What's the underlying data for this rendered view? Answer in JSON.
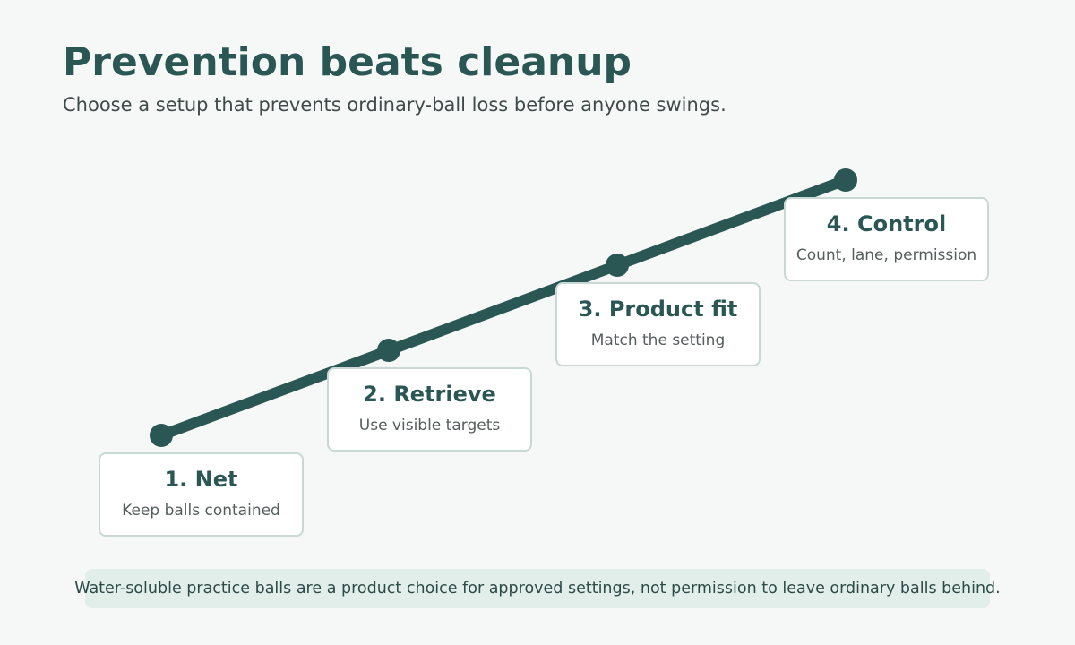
{
  "title": "Prevention beats cleanup",
  "subtitle": "Choose a setup that prevents ordinary-ball loss before anyone swings.",
  "steps": [
    {
      "title": "1. Net",
      "desc": "Keep balls contained"
    },
    {
      "title": "2. Retrieve",
      "desc": "Use visible targets"
    },
    {
      "title": "3. Product fit",
      "desc": "Match the setting"
    },
    {
      "title": "4. Control",
      "desc": "Count, lane, permission"
    }
  ],
  "note": "Water-soluble practice balls are a product choice for approved settings, not permission to leave ordinary balls behind.",
  "colors": {
    "accent": "#2a5654",
    "card_border": "#c9d8d5",
    "note_bg": "#e2eee9",
    "background": "#f6f8f7"
  }
}
